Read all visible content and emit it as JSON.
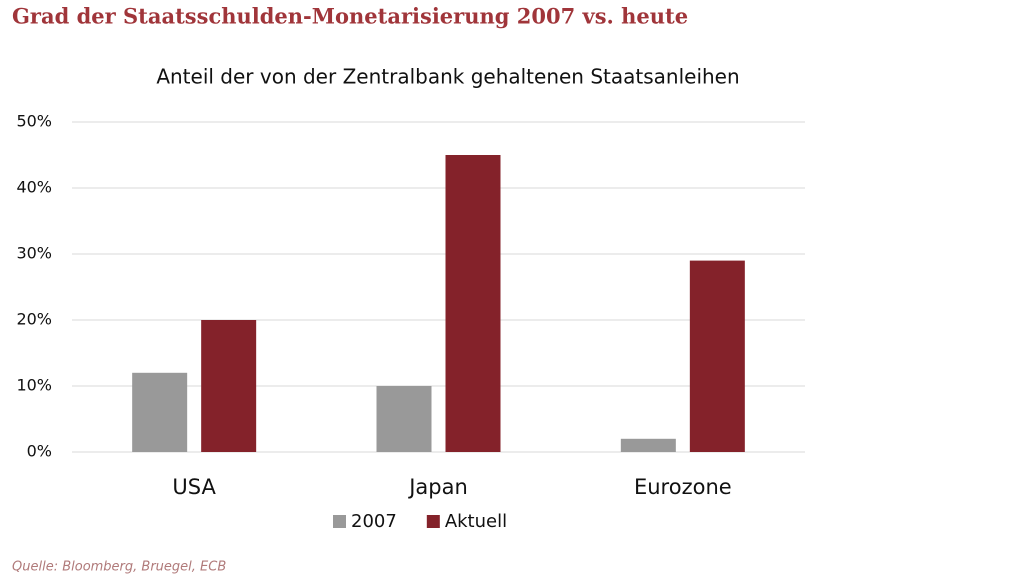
{
  "heading": "Grad der Staatsschulden-Monetarisierung 2007 vs. heute",
  "source": "Quelle: Bloomberg, Bruegel, ECB",
  "chart_data": {
    "type": "bar",
    "title": "Anteil der von der Zentralbank gehaltenen Staatsanleihen",
    "categories": [
      "USA",
      "Japan",
      "Eurozone"
    ],
    "series": [
      {
        "name": "2007",
        "color": "#999999",
        "values": [
          12,
          10,
          2
        ]
      },
      {
        "name": "Aktuell",
        "color": "#84222a",
        "values": [
          20,
          45,
          29
        ]
      }
    ],
    "ylim": [
      0,
      50
    ],
    "yticks": [
      {
        "value": 0,
        "label": "0%"
      },
      {
        "value": 10,
        "label": "10%"
      },
      {
        "value": 20,
        "label": "20%"
      },
      {
        "value": 30,
        "label": "30%"
      },
      {
        "value": 40,
        "label": "40%"
      },
      {
        "value": 50,
        "label": "50%"
      }
    ],
    "grid": true,
    "legend": "bottom"
  }
}
